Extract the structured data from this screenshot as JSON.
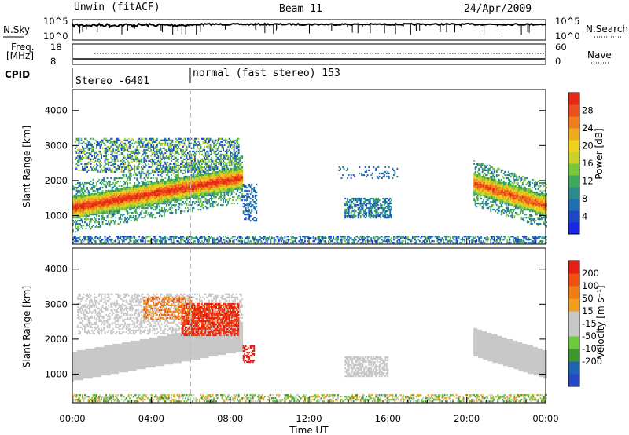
{
  "header": {
    "station": "Unwin (fitACF)",
    "beam": "Beam 11",
    "date": "24/Apr/2009"
  },
  "top_panels": {
    "nsky_label": "N.Sky",
    "nsky_ticks": [
      "10^5",
      "10^0"
    ],
    "nsearch_label": "N.Search",
    "nsearch_ticks": [
      "10^5",
      "10^0"
    ],
    "freq_label": "Freq.",
    "freq_unit": "[MHz]",
    "freq_ticks": [
      "18",
      "8"
    ],
    "nave_label": "Nave",
    "nave_ticks": [
      "60",
      "0"
    ],
    "cpid_label": "CPID",
    "cpid_modes": [
      {
        "text": "Stereo -6401",
        "start_hour": 0
      },
      {
        "text": "normal (fast stereo) 153",
        "start_hour": 6
      }
    ]
  },
  "chart_data": [
    {
      "type": "heatmap",
      "name": "power",
      "xlabel": "",
      "ylabel": "Slant Range [km]",
      "xlim": [
        0,
        24
      ],
      "ylim": [
        180,
        4600
      ],
      "yticks": [
        1000,
        2000,
        3000,
        4000
      ],
      "colorbar": {
        "label": "Power [dB]",
        "tick_labels": [
          "4",
          "8",
          "12",
          "16",
          "20",
          "24",
          "28"
        ],
        "bins": [
          "#1a28e6",
          "#1e46c8",
          "#1e6eb4",
          "#2d8a8c",
          "#3caa5a",
          "#78c83c",
          "#c8d228",
          "#f0d21e",
          "#f0aa1e",
          "#f07d1e",
          "#eb501e",
          "#e62814"
        ]
      },
      "echo_regions": [
        {
          "t0": 0,
          "t1": 8.6,
          "r_center": "1200→2050",
          "description": "dense band",
          "level": "high"
        }
      ]
    },
    {
      "type": "heatmap",
      "name": "velocity",
      "xlabel": "Time UT",
      "ylabel": "Slant Range [km]",
      "xlim": [
        0,
        24
      ],
      "ylim": [
        180,
        4600
      ],
      "yticks": [
        1000,
        2000,
        3000,
        4000
      ],
      "colorbar": {
        "label": "Velocity [m s⁻¹]",
        "tick_labels": [
          "200",
          "100",
          "50",
          "15",
          "-15",
          "-50",
          "-100",
          "-200"
        ],
        "bins": [
          "#2846c8",
          "#1e64b4",
          "#3c9632",
          "#6ec83c",
          "#c8c8c8",
          "#c8c8c8",
          "#f0a01e",
          "#f07d14",
          "#f05014",
          "#e61e14"
        ]
      }
    }
  ],
  "x_axis": {
    "tick_labels": [
      "00:00",
      "04:00",
      "08:00",
      "12:00",
      "16:00",
      "20:00",
      "00:00"
    ],
    "title": "Time UT"
  }
}
